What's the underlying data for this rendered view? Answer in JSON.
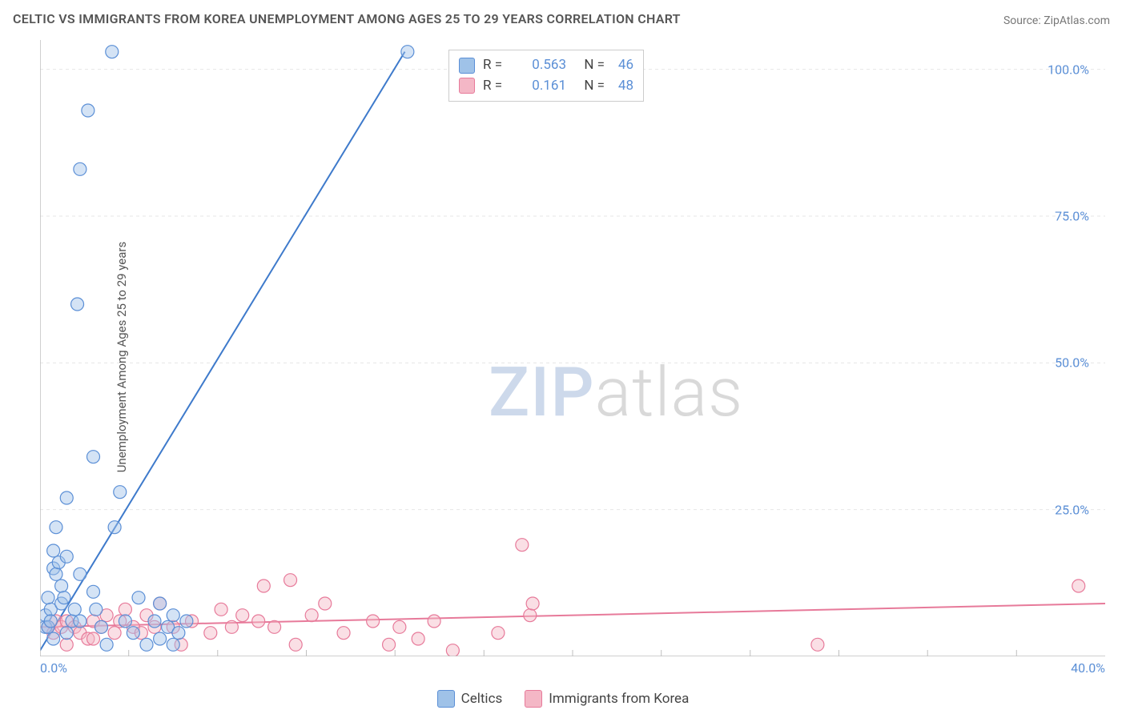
{
  "title": "CELTIC VS IMMIGRANTS FROM KOREA UNEMPLOYMENT AMONG AGES 25 TO 29 YEARS CORRELATION CHART",
  "source_label": "Source: ",
  "source_value": "ZipAtlas.com",
  "y_axis_label": "Unemployment Among Ages 25 to 29 years",
  "watermark": {
    "part1": "ZIP",
    "part2": "atlas"
  },
  "chart": {
    "type": "scatter",
    "background_color": "#ffffff",
    "grid_color": "#e6e6e6",
    "axis_line_color": "#bfbfbf",
    "tick_label_color": "#5b8fd6",
    "tick_label_fontsize": 16,
    "title_fontsize": 16,
    "xlim": [
      0,
      40
    ],
    "ylim": [
      0,
      105
    ],
    "y_ticks": [
      25,
      50,
      75,
      100
    ],
    "y_tick_labels": [
      "25.0%",
      "50.0%",
      "75.0%",
      "100.0%"
    ],
    "x_ticks": [
      0,
      40
    ],
    "x_tick_labels": [
      "0.0%",
      "40.0%"
    ],
    "x_minor_ticks": [
      3.33,
      6.67,
      10,
      13.33,
      16.67,
      20,
      23.33,
      26.67,
      30,
      33.33,
      36.67
    ],
    "marker_radius": 8,
    "marker_opacity": 0.45,
    "line_width": 2,
    "series": [
      {
        "name": "Celtics",
        "color_fill": "#9fc2e8",
        "color_stroke": "#5b8fd6",
        "line_color": "#3e7acb",
        "R": "0.563",
        "N": "46",
        "trend": {
          "x1": 0,
          "y1": 1,
          "x2": 13.7,
          "y2": 103
        },
        "points": [
          [
            0.2,
            5
          ],
          [
            0.2,
            7
          ],
          [
            0.3,
            10
          ],
          [
            0.3,
            5
          ],
          [
            0.4,
            8
          ],
          [
            0.4,
            6
          ],
          [
            0.5,
            15
          ],
          [
            0.5,
            18
          ],
          [
            0.6,
            14
          ],
          [
            0.6,
            22
          ],
          [
            0.7,
            16
          ],
          [
            0.8,
            12
          ],
          [
            0.8,
            9
          ],
          [
            0.9,
            10
          ],
          [
            1.0,
            17
          ],
          [
            1.0,
            4
          ],
          [
            1.0,
            27
          ],
          [
            1.2,
            6
          ],
          [
            1.3,
            8
          ],
          [
            1.4,
            60
          ],
          [
            1.5,
            14
          ],
          [
            1.5,
            83
          ],
          [
            1.5,
            6
          ],
          [
            1.8,
            93
          ],
          [
            2.0,
            34
          ],
          [
            2.0,
            11
          ],
          [
            2.1,
            8
          ],
          [
            2.3,
            5
          ],
          [
            2.5,
            2
          ],
          [
            2.7,
            103
          ],
          [
            2.8,
            22
          ],
          [
            3.0,
            28
          ],
          [
            3.2,
            6
          ],
          [
            3.5,
            4
          ],
          [
            3.7,
            10
          ],
          [
            4.0,
            2
          ],
          [
            4.3,
            6
          ],
          [
            4.5,
            3
          ],
          [
            4.5,
            9
          ],
          [
            4.8,
            5
          ],
          [
            5.0,
            7
          ],
          [
            5.0,
            2
          ],
          [
            5.2,
            4
          ],
          [
            5.5,
            6
          ],
          [
            13.8,
            103
          ],
          [
            0.5,
            3
          ]
        ]
      },
      {
        "name": "Immigrants from Korea",
        "color_fill": "#f4b7c6",
        "color_stroke": "#e77a9a",
        "line_color": "#e77a9a",
        "R": "0.161",
        "N": "48",
        "trend": {
          "x1": 0,
          "y1": 5,
          "x2": 40,
          "y2": 9
        },
        "points": [
          [
            0.3,
            5
          ],
          [
            0.5,
            4
          ],
          [
            0.6,
            6
          ],
          [
            0.8,
            5
          ],
          [
            1.0,
            6
          ],
          [
            1.0,
            2
          ],
          [
            1.3,
            5
          ],
          [
            1.5,
            4
          ],
          [
            1.8,
            3
          ],
          [
            2.0,
            6
          ],
          [
            2.0,
            3
          ],
          [
            2.3,
            5
          ],
          [
            2.5,
            7
          ],
          [
            2.8,
            4
          ],
          [
            3.0,
            6
          ],
          [
            3.2,
            8
          ],
          [
            3.5,
            5
          ],
          [
            3.8,
            4
          ],
          [
            4.0,
            7
          ],
          [
            4.3,
            5
          ],
          [
            4.5,
            9
          ],
          [
            5.0,
            5
          ],
          [
            5.3,
            2
          ],
          [
            5.7,
            6
          ],
          [
            6.4,
            4
          ],
          [
            6.8,
            8
          ],
          [
            7.2,
            5
          ],
          [
            7.6,
            7
          ],
          [
            8.2,
            6
          ],
          [
            8.4,
            12
          ],
          [
            8.8,
            5
          ],
          [
            9.4,
            13
          ],
          [
            9.6,
            2
          ],
          [
            10.2,
            7
          ],
          [
            10.7,
            9
          ],
          [
            11.4,
            4
          ],
          [
            12.5,
            6
          ],
          [
            13.1,
            2
          ],
          [
            13.5,
            5
          ],
          [
            14.2,
            3
          ],
          [
            14.8,
            6
          ],
          [
            15.5,
            1
          ],
          [
            17.2,
            4
          ],
          [
            18.1,
            19
          ],
          [
            18.4,
            7
          ],
          [
            18.5,
            9
          ],
          [
            29.2,
            2
          ],
          [
            39.0,
            12
          ]
        ]
      }
    ]
  },
  "legend": {
    "series1_label": "Celtics",
    "series2_label": "Immigrants from Korea"
  },
  "stats_box": {
    "r_label": "R =",
    "n_label": "N ="
  }
}
